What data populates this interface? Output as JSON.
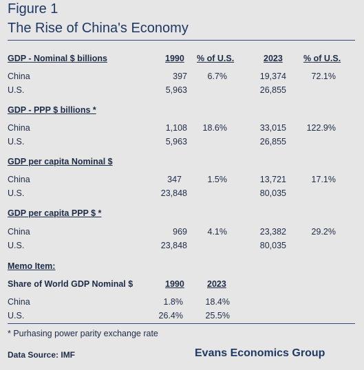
{
  "figure_label": "Figure 1",
  "title": "The Rise of China's Economy",
  "sections": [
    {
      "heading": "GDP - Nominal $ billions",
      "col_headers": [
        "1990",
        "% of U.S.",
        "2023",
        "% of U.S."
      ],
      "rows": [
        {
          "label": "China",
          "v1990": "397",
          "pct1990": "6.7%",
          "v2023": "19,374",
          "pct2023": "72.1%"
        },
        {
          "label": "U.S.",
          "v1990": "5,963",
          "pct1990": "",
          "v2023": "26,855",
          "pct2023": ""
        }
      ]
    },
    {
      "heading": "GDP - PPP $ billions *",
      "rows": [
        {
          "label": "China",
          "v1990": "1,108",
          "pct1990": "18.6%",
          "v2023": "33,015",
          "pct2023": "122.9%"
        },
        {
          "label": "U.S.",
          "v1990": "5,963",
          "pct1990": "",
          "v2023": "26,855",
          "pct2023": ""
        }
      ]
    },
    {
      "heading": "GDP  per capita Nominal $",
      "rows": [
        {
          "label": "China",
          "v1990": "347",
          "pct1990": "1.5%",
          "v2023": "13,721",
          "pct2023": "17.1%"
        },
        {
          "label": "U.S.",
          "v1990": "23,848",
          "pct1990": "",
          "v2023": "80,035",
          "pct2023": ""
        }
      ]
    },
    {
      "heading": "GDP  per capita PPP $  *",
      "rows": [
        {
          "label": "China",
          "v1990": "969",
          "pct1990": "4.1%",
          "v2023": "23,382",
          "pct2023": "29.2%"
        },
        {
          "label": "U.S.",
          "v1990": "23,848",
          "pct1990": "",
          "v2023": "80,035",
          "pct2023": ""
        }
      ]
    }
  ],
  "memo": {
    "heading": "Memo Item:",
    "subheading": "Share of World GDP Nominal $",
    "col_headers": [
      "1990",
      "2023"
    ],
    "rows": [
      {
        "label": "China",
        "v1990": "1.8%",
        "v2023": "18.4%"
      },
      {
        "label": "U.S.",
        "v1990": "26.4%",
        "v2023": "25.5%"
      }
    ]
  },
  "footnote": "* Purhasing power parity exchange rate",
  "source": "Data Source:  IMF",
  "brand": "Evans Economics Group"
}
